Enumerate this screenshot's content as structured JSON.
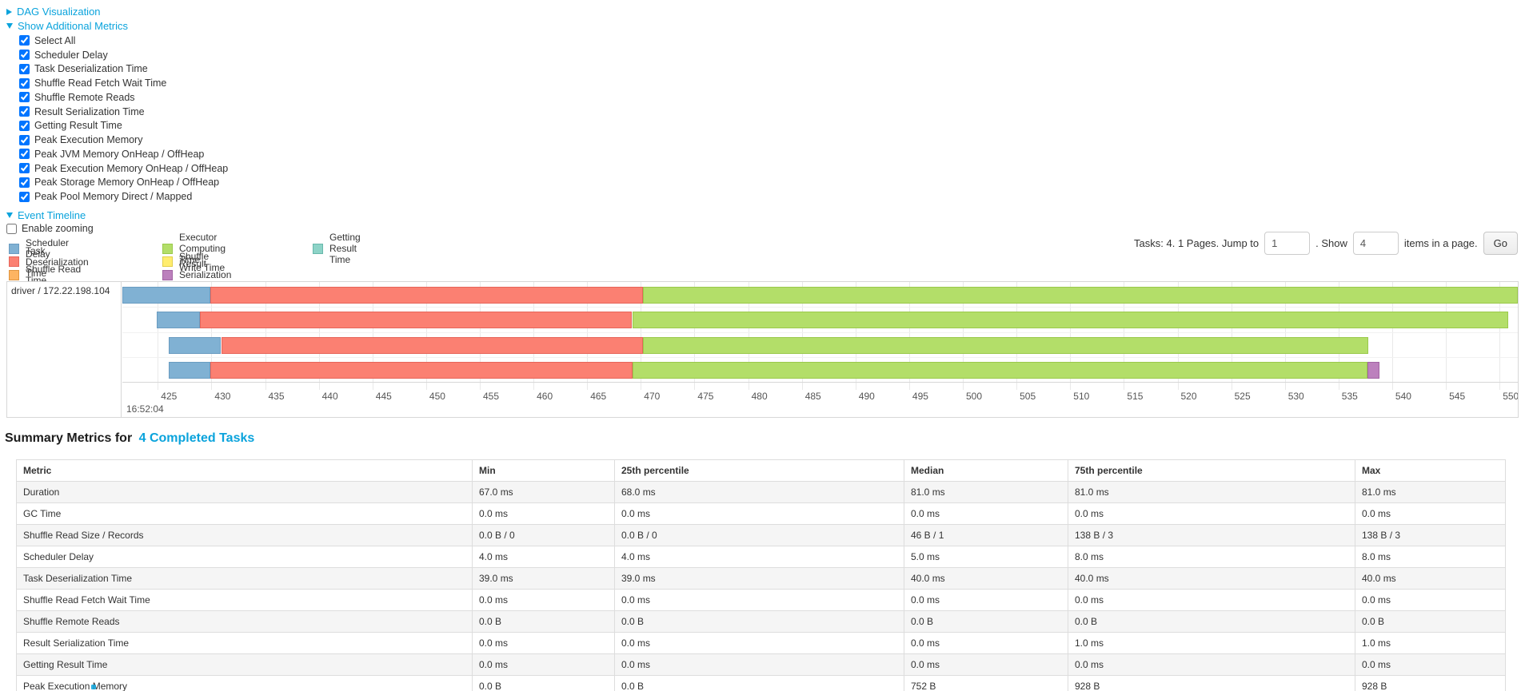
{
  "link_color": "#0aa3dc",
  "sections": {
    "dag": {
      "label": "DAG Visualization",
      "state": "collapsed"
    },
    "additional_metrics": {
      "label": "Show Additional Metrics",
      "state": "expanded"
    },
    "event_timeline": {
      "label": "Event Timeline",
      "state": "expanded"
    }
  },
  "metric_checkboxes": {
    "items": [
      {
        "label": "Select All",
        "checked": true
      },
      {
        "label": "Scheduler Delay",
        "checked": true
      },
      {
        "label": "Task Deserialization Time",
        "checked": true
      },
      {
        "label": "Shuffle Read Fetch Wait Time",
        "checked": true
      },
      {
        "label": "Shuffle Remote Reads",
        "checked": true
      },
      {
        "label": "Result Serialization Time",
        "checked": true
      },
      {
        "label": "Getting Result Time",
        "checked": true
      },
      {
        "label": "Peak Execution Memory",
        "checked": true
      },
      {
        "label": "Peak JVM Memory OnHeap / OffHeap",
        "checked": true
      },
      {
        "label": "Peak Execution Memory OnHeap / OffHeap",
        "checked": true
      },
      {
        "label": "Peak Storage Memory OnHeap / OffHeap",
        "checked": true
      },
      {
        "label": "Peak Pool Memory Direct / Mapped",
        "checked": true
      }
    ]
  },
  "enable_zooming": {
    "label": "Enable zooming",
    "checked": false
  },
  "pagination": {
    "tasks_text": "Tasks: 4. 1 Pages. Jump to",
    "jump_value": "1",
    "show_text": ". Show",
    "show_value": "4",
    "items_text": "items in a page.",
    "go_label": "Go"
  },
  "legend": {
    "columns": [
      [
        {
          "key": "scheduler_delay",
          "label": "Scheduler Delay"
        },
        {
          "key": "task_deserialization",
          "label": "Task Deserialization Time"
        },
        {
          "key": "shuffle_read",
          "label": "Shuffle Read Time"
        }
      ],
      [
        {
          "key": "executor_computing",
          "label": "Executor Computing Time"
        },
        {
          "key": "shuffle_write",
          "label": "Shuffle Write Time"
        },
        {
          "key": "result_serialization",
          "label": "Result Serialization Time"
        }
      ],
      [
        {
          "key": "getting_result",
          "label": "Getting Result Time"
        }
      ]
    ]
  },
  "chart_data": {
    "type": "timeline",
    "group_label": "driver / 172.22.198.104",
    "axis": {
      "min": 421.7,
      "max": 551.7,
      "tick_start": 425,
      "tick_end": 550,
      "tick_step": 5,
      "time_label": "16:52:04",
      "units": "ms offset within second 16:52:04"
    },
    "colors": {
      "scheduler_delay": {
        "fill": "#80B1D3",
        "border": "#6a9cc1"
      },
      "task_deserialization": {
        "fill": "#FB8072",
        "border": "#e6655a"
      },
      "shuffle_read": {
        "fill": "#FDB462",
        "border": "#e09540"
      },
      "executor_computing": {
        "fill": "#B3DE69",
        "border": "#9ac94b"
      },
      "shuffle_write": {
        "fill": "#FFED6F",
        "border": "#e2cf4b"
      },
      "result_serialization": {
        "fill": "#BC80BD",
        "border": "#a263a3"
      },
      "getting_result": {
        "fill": "#8DD3C7",
        "border": "#68b8ab"
      }
    },
    "tasks": [
      {
        "segments": [
          {
            "key": "scheduler_delay",
            "start": 421.7,
            "end": 429.9
          },
          {
            "key": "task_deserialization",
            "start": 429.9,
            "end": 470.2
          },
          {
            "key": "executor_computing",
            "start": 470.2,
            "end": 551.7
          }
        ]
      },
      {
        "segments": [
          {
            "key": "scheduler_delay",
            "start": 424.9,
            "end": 428.9
          },
          {
            "key": "task_deserialization",
            "start": 428.9,
            "end": 469.2
          },
          {
            "key": "executor_computing",
            "start": 469.2,
            "end": 550.8
          }
        ]
      },
      {
        "segments": [
          {
            "key": "scheduler_delay",
            "start": 426.0,
            "end": 430.9
          },
          {
            "key": "task_deserialization",
            "start": 430.9,
            "end": 470.2
          },
          {
            "key": "executor_computing",
            "start": 470.2,
            "end": 537.8
          }
        ]
      },
      {
        "segments": [
          {
            "key": "scheduler_delay",
            "start": 426.0,
            "end": 429.9
          },
          {
            "key": "task_deserialization",
            "start": 429.9,
            "end": 469.2
          },
          {
            "key": "executor_computing",
            "start": 469.2,
            "end": 537.7
          },
          {
            "key": "result_serialization",
            "start": 537.7,
            "end": 538.8
          }
        ]
      }
    ]
  },
  "summary": {
    "title_prefix": "Summary Metrics for",
    "title_link": "4 Completed Tasks"
  },
  "table": {
    "headers": [
      "Metric",
      "Min",
      "25th percentile",
      "Median",
      "75th percentile",
      "Max"
    ],
    "rows": [
      [
        "Duration",
        "67.0 ms",
        "68.0 ms",
        "81.0 ms",
        "81.0 ms",
        "81.0 ms"
      ],
      [
        "GC Time",
        "0.0 ms",
        "0.0 ms",
        "0.0 ms",
        "0.0 ms",
        "0.0 ms"
      ],
      [
        "Shuffle Read Size / Records",
        "0.0 B / 0",
        "0.0 B / 0",
        "46 B / 1",
        "138 B / 3",
        "138 B / 3"
      ],
      [
        "Scheduler Delay",
        "4.0 ms",
        "4.0 ms",
        "5.0 ms",
        "8.0 ms",
        "8.0 ms"
      ],
      [
        "Task Deserialization Time",
        "39.0 ms",
        "39.0 ms",
        "40.0 ms",
        "40.0 ms",
        "40.0 ms"
      ],
      [
        "Shuffle Read Fetch Wait Time",
        "0.0 ms",
        "0.0 ms",
        "0.0 ms",
        "0.0 ms",
        "0.0 ms"
      ],
      [
        "Shuffle Remote Reads",
        "0.0 B",
        "0.0 B",
        "0.0 B",
        "0.0 B",
        "0.0 B"
      ],
      [
        "Result Serialization Time",
        "0.0 ms",
        "0.0 ms",
        "0.0 ms",
        "1.0 ms",
        "1.0 ms"
      ],
      [
        "Getting Result Time",
        "0.0 ms",
        "0.0 ms",
        "0.0 ms",
        "0.0 ms",
        "0.0 ms"
      ],
      [
        "Peak Execution Memory",
        "0.0 B",
        "0.0 B",
        "752 B",
        "928 B",
        "928 B"
      ]
    ]
  }
}
